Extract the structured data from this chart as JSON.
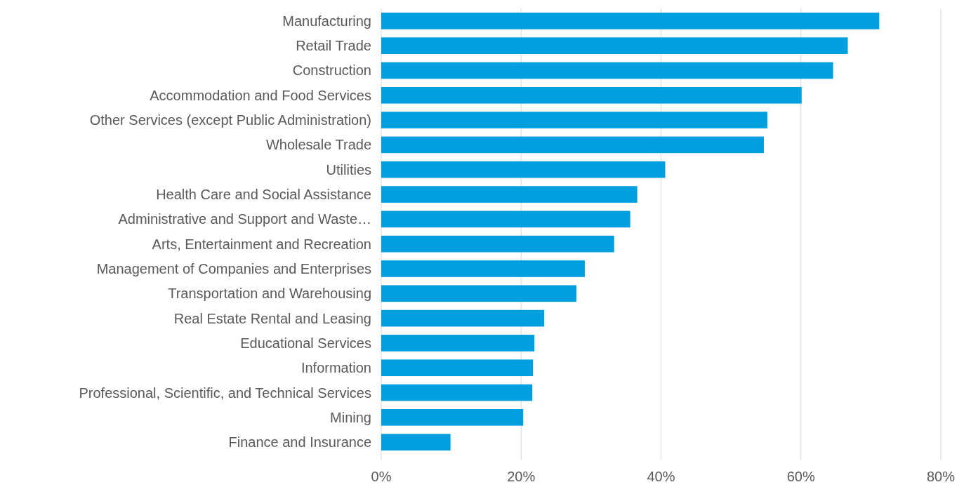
{
  "chart_data": {
    "type": "bar",
    "orientation": "horizontal",
    "categories": [
      "Manufacturing",
      "Retail Trade",
      "Construction",
      "Accommodation and Food Services",
      "Other Services (except Public Administration)",
      "Wholesale Trade",
      "Utilities",
      "Health Care and Social Assistance",
      "Administrative and Support and Waste…",
      "Arts, Entertainment and Recreation",
      "Management of Companies and Enterprises",
      "Transportation and Warehousing",
      "Real Estate Rental and Leasing",
      "Educational Services",
      "Information",
      "Professional, Scientific, and Technical Services",
      "Mining",
      "Finance and Insurance"
    ],
    "values": [
      71.2,
      66.7,
      64.6,
      60.1,
      55.2,
      54.7,
      40.6,
      36.6,
      35.6,
      33.3,
      29.1,
      27.9,
      23.3,
      21.9,
      21.7,
      21.6,
      20.3,
      9.9
    ],
    "color": "#009fe0",
    "xlim": [
      0,
      80
    ],
    "xticks": [
      {
        "value": 0,
        "label": "0%"
      },
      {
        "value": 20,
        "label": "20%"
      },
      {
        "value": 40,
        "label": "40%"
      },
      {
        "value": 60,
        "label": "60%"
      },
      {
        "value": 80,
        "label": "80%"
      }
    ],
    "grid": "x"
  }
}
